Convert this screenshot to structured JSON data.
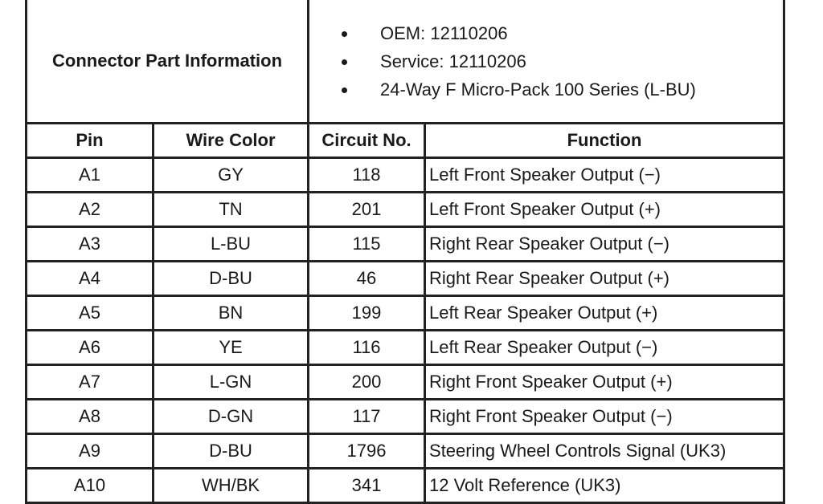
{
  "connector": {
    "label": "Connector Part Information",
    "items": [
      "OEM: 12110206",
      "Service: 12110206",
      "24-Way F Micro-Pack 100 Series (L-BU)"
    ]
  },
  "headers": [
    "Pin",
    "Wire Color",
    "Circuit No.",
    "Function"
  ],
  "rows": [
    [
      "A1",
      "GY",
      "118",
      "Left Front Speaker Output (−)"
    ],
    [
      "A2",
      "TN",
      "201",
      "Left Front Speaker Output (+)"
    ],
    [
      "A3",
      "L-BU",
      "115",
      "Right Rear Speaker Output (−)"
    ],
    [
      "A4",
      "D-BU",
      "46",
      "Right Rear Speaker Output (+)"
    ],
    [
      "A5",
      "BN",
      "199",
      "Left Rear Speaker Output (+)"
    ],
    [
      "A6",
      "YE",
      "116",
      "Left Rear Speaker Output (−)"
    ],
    [
      "A7",
      "L-GN",
      "200",
      "Right Front Speaker Output (+)"
    ],
    [
      "A8",
      "D-GN",
      "117",
      "Right Front Speaker Output (−)"
    ],
    [
      "A9",
      "D-BU",
      "1796",
      "Steering Wheel Controls Signal (UK3)"
    ],
    [
      "A10",
      "WH/BK",
      "341",
      "12 Volt Reference (UK3)"
    ]
  ]
}
